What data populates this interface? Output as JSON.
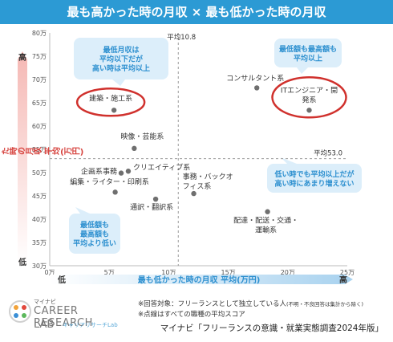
{
  "header": {
    "title": "最も高かった時の月収 × 最も低かった時の月収"
  },
  "colors": {
    "header_bg": "#2c9ad4",
    "axis_text": "#2c8fcf",
    "y_axis_text": "#d6403b",
    "point": "#6f6f6f",
    "highlight_circle": "#d0312d",
    "callout_bg": "#dceefa"
  },
  "chart_data": {
    "type": "scatter",
    "xlabel": "最も低かった時の月収 平均(万円)",
    "ylabel": "最も高かった時の月収 平均(万円)",
    "x_low_label": "低",
    "x_high_label": "高",
    "y_low_label": "低",
    "y_high_label": "高",
    "xlim": [
      0,
      25
    ],
    "ylim": [
      30,
      80
    ],
    "x_ticks": [
      "0万",
      "5万",
      "10万",
      "15万",
      "20万",
      "25万"
    ],
    "y_ticks": [
      "30万",
      "35万",
      "40万",
      "45万",
      "50万",
      "55万",
      "60万",
      "65万",
      "70万",
      "75万",
      "80万"
    ],
    "x_avg": 10.8,
    "y_avg": 53.0,
    "x_avg_label": "平均10.8",
    "y_avg_label": "平均53.0",
    "points": [
      {
        "label": "コンサルタント系",
        "x": 17.4,
        "y": 68.2
      },
      {
        "label": "ITエンジニア・開発系",
        "x": 21.8,
        "y": 63.4
      },
      {
        "label": "建築・施工系",
        "x": 5.4,
        "y": 63.4
      },
      {
        "label": "映像・芸能系",
        "x": 7.1,
        "y": 55.2
      },
      {
        "label": "クリエイティブ系",
        "x": 6.6,
        "y": 50.3
      },
      {
        "label": "企画系事務",
        "x": 6.0,
        "y": 49.9
      },
      {
        "label": "編集・ライター・印刷系",
        "x": 5.5,
        "y": 45.8
      },
      {
        "label": "事務・バックオフィス系",
        "x": 12.1,
        "y": 45.5
      },
      {
        "label": "通訳・翻訳系",
        "x": 8.9,
        "y": 44.3
      },
      {
        "label": "配達・配送・交通・運輸系",
        "x": 18.3,
        "y": 41.6
      }
    ],
    "callouts": [
      {
        "text": [
          "最低月収は",
          "平均以下だが",
          "高い時は平均以上"
        ]
      },
      {
        "text": [
          "最低額も最高額も",
          "平均以上"
        ]
      },
      {
        "text": [
          "低い時でも平均以上だが",
          "高い時にあまり増えない"
        ]
      },
      {
        "text": [
          "最低額も",
          "最高額も",
          "平均より低い"
        ]
      }
    ]
  },
  "notes": {
    "line1": "※回答対象：フリーランスとして独立している人",
    "line1_small": "(不明・不良回答は集計から除く)",
    "line2": "※点線はすべての職種の平均スコア"
  },
  "source": "マイナビ「フリーランスの意識・就業実態調査2024年版」",
  "logo": {
    "brand": "マイナビ",
    "line1": "CAREER RESEARCH",
    "line2": "LAB",
    "line3": "キャリアリサーチLab"
  }
}
